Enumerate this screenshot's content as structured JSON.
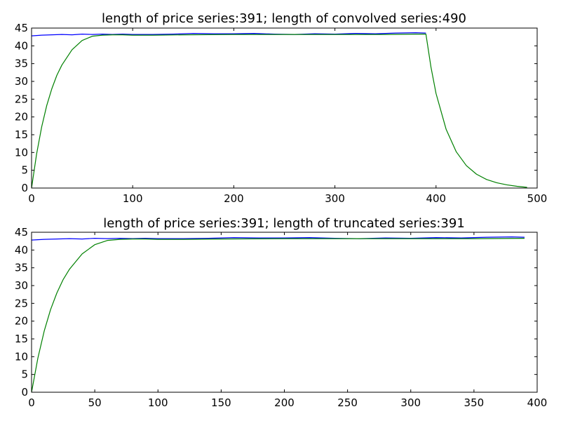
{
  "chart_data": [
    {
      "type": "line",
      "title": "length of price series:391; length of convolved series:490",
      "xlabel": "",
      "ylabel": "",
      "xlim": [
        0,
        500
      ],
      "ylim": [
        0,
        45
      ],
      "xticks": [
        0,
        100,
        200,
        300,
        400,
        500
      ],
      "yticks": [
        0,
        5,
        10,
        15,
        20,
        25,
        30,
        35,
        40,
        45
      ],
      "grid": false,
      "legend": "none",
      "series": [
        {
          "color": "#0000ff",
          "x": [
            0,
            10,
            20,
            30,
            40,
            50,
            60,
            70,
            80,
            90,
            100,
            120,
            140,
            160,
            180,
            200,
            220,
            240,
            260,
            280,
            300,
            320,
            340,
            360,
            380,
            390
          ],
          "values": [
            42.8,
            43.0,
            43.1,
            43.2,
            43.1,
            43.3,
            43.2,
            43.3,
            43.2,
            43.3,
            43.2,
            43.2,
            43.3,
            43.5,
            43.4,
            43.4,
            43.5,
            43.3,
            43.2,
            43.4,
            43.3,
            43.5,
            43.4,
            43.6,
            43.7,
            43.6
          ]
        },
        {
          "color": "#008000",
          "x": [
            0,
            5,
            10,
            15,
            20,
            25,
            30,
            40,
            50,
            60,
            70,
            80,
            90,
            100,
            120,
            150,
            200,
            250,
            300,
            350,
            380,
            390,
            395,
            400,
            410,
            420,
            430,
            440,
            450,
            460,
            470,
            480,
            490
          ],
          "values": [
            0,
            9.6,
            17.2,
            23.2,
            27.9,
            31.7,
            34.6,
            38.9,
            41.5,
            42.7,
            43.0,
            43.1,
            43.1,
            43.0,
            43.0,
            43.1,
            43.2,
            43.2,
            43.2,
            43.2,
            43.3,
            43.3,
            34.0,
            26.6,
            16.5,
            10.2,
            6.3,
            3.9,
            2.4,
            1.5,
            0.9,
            0.5,
            0.2
          ]
        }
      ]
    },
    {
      "type": "line",
      "title": "length of price series:391; length of truncated series:391",
      "xlabel": "",
      "ylabel": "",
      "xlim": [
        0,
        400
      ],
      "ylim": [
        0,
        45
      ],
      "xticks": [
        0,
        50,
        100,
        150,
        200,
        250,
        300,
        350,
        400
      ],
      "yticks": [
        0,
        5,
        10,
        15,
        20,
        25,
        30,
        35,
        40,
        45
      ],
      "grid": false,
      "legend": "none",
      "series": [
        {
          "color": "#0000ff",
          "x": [
            0,
            10,
            20,
            30,
            40,
            50,
            60,
            70,
            80,
            90,
            100,
            120,
            140,
            160,
            180,
            200,
            220,
            240,
            260,
            280,
            300,
            320,
            340,
            360,
            380,
            390
          ],
          "values": [
            42.8,
            43.0,
            43.1,
            43.2,
            43.1,
            43.3,
            43.2,
            43.3,
            43.2,
            43.3,
            43.2,
            43.2,
            43.3,
            43.5,
            43.4,
            43.4,
            43.5,
            43.3,
            43.2,
            43.4,
            43.3,
            43.5,
            43.4,
            43.6,
            43.7,
            43.6
          ]
        },
        {
          "color": "#008000",
          "x": [
            0,
            5,
            10,
            15,
            20,
            25,
            30,
            40,
            50,
            60,
            70,
            80,
            90,
            100,
            120,
            150,
            200,
            250,
            300,
            350,
            390
          ],
          "values": [
            0,
            9.6,
            17.2,
            23.2,
            27.9,
            31.7,
            34.6,
            38.9,
            41.5,
            42.7,
            43.0,
            43.1,
            43.1,
            43.0,
            43.0,
            43.1,
            43.2,
            43.2,
            43.2,
            43.2,
            43.3
          ]
        }
      ]
    }
  ]
}
